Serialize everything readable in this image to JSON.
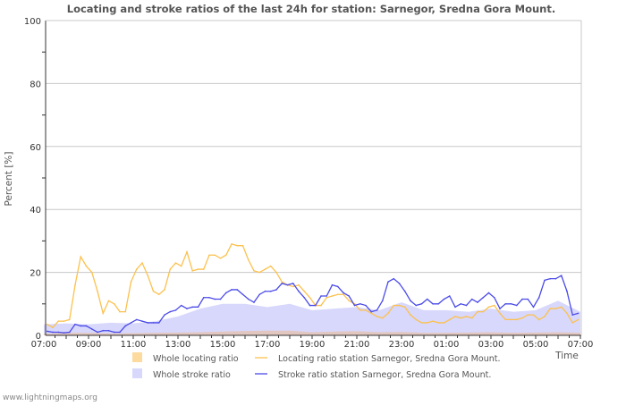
{
  "chart_data": {
    "type": "line",
    "title": "Locating and stroke ratios of the last 24h for station: Sarnegor, Sredna Gora Mount.",
    "xlabel": "Time",
    "ylabel": "Percent   [%]",
    "ylim": [
      0,
      100
    ],
    "xlim_hours_from_start": [
      0,
      24
    ],
    "y_ticks": [
      "0",
      "20",
      "40",
      "60",
      "80",
      "100"
    ],
    "y_tick_values": [
      0,
      20,
      40,
      60,
      80,
      100
    ],
    "x_ticks": [
      "07:00",
      "09:00",
      "11:00",
      "13:00",
      "15:00",
      "17:00",
      "19:00",
      "21:00",
      "23:00",
      "01:00",
      "03:00",
      "05:00",
      "07:00"
    ],
    "grid": true,
    "legend_placement": "bottom",
    "colors": {
      "whole_locating": "#fddb9e",
      "whole_stroke": "#d8d8fc",
      "locating_line": "#fcc14e",
      "stroke_line": "#4b4be8",
      "grid": "#c8c8c8"
    },
    "series": [
      {
        "name": "Whole locating ratio",
        "kind": "area",
        "x_start": 0,
        "x_step": 1,
        "values": [
          0.5,
          0.8,
          0.8,
          0.6,
          0.7,
          0.8,
          0.9,
          1,
          1.2,
          1.4,
          1.5,
          1.5,
          1,
          1.2,
          1.3,
          1,
          1.1,
          0.8,
          0.8,
          0.9,
          1,
          0.8,
          0.9,
          1,
          0.8
        ]
      },
      {
        "name": "Whole stroke ratio",
        "kind": "area",
        "x_start": 0,
        "x_step": 1,
        "values": [
          3.5,
          3.8,
          3.5,
          4,
          3.8,
          4.5,
          6,
          8.5,
          10,
          10,
          9,
          10,
          8,
          8.5,
          9,
          8,
          10.5,
          8,
          8,
          7.5,
          8.5,
          7.5,
          8,
          11,
          7.5
        ]
      },
      {
        "name": "Locating ratio station Sarnegor, Sredna Gora Mount.",
        "kind": "line",
        "x_start": 0.15,
        "x_step": 0.25,
        "values": [
          3.5,
          2.5,
          4.5,
          4.5,
          5,
          16,
          25,
          22,
          20,
          14,
          7,
          11,
          10,
          7.5,
          7.5,
          17,
          21,
          23,
          19,
          14,
          13,
          14.5,
          21,
          23,
          22,
          26.5,
          20.5,
          21,
          21,
          25.5,
          25.5,
          24.5,
          25.5,
          29,
          28.5,
          28.5,
          24,
          20.5,
          20,
          21,
          22,
          20,
          17,
          16,
          15.5,
          16,
          14,
          12,
          9.5,
          9.5,
          12,
          12.5,
          13,
          13,
          11,
          10,
          8,
          8,
          7,
          6,
          5.5,
          7,
          9.5,
          9.5,
          9,
          6.5,
          5,
          4,
          4,
          4.5,
          4,
          4,
          5,
          6,
          5.5,
          6,
          5.5,
          7.5,
          7.5,
          9,
          9.5,
          7,
          5,
          5,
          5,
          5.5,
          6.5,
          6.5,
          5,
          6,
          8.5,
          8.5,
          9,
          7,
          4,
          5
        ]
      },
      {
        "name": "Stroke ratio station Sarnegor, Sredna Gora Mount.",
        "kind": "line",
        "x_start": 0.15,
        "x_step": 0.25,
        "values": [
          1.3,
          1,
          1,
          0.8,
          1,
          3.5,
          3,
          3,
          2,
          1,
          1.5,
          1.5,
          1,
          1,
          3,
          4,
          5,
          4.5,
          4,
          4,
          4,
          6.5,
          7.5,
          8,
          9.5,
          8.5,
          9,
          9,
          12,
          12,
          11.5,
          11.5,
          13.5,
          14.5,
          14.5,
          13,
          11.5,
          10.5,
          13,
          14,
          14,
          14.5,
          16.5,
          16,
          16.5,
          14,
          12,
          9.5,
          9.5,
          12.5,
          12.5,
          16,
          15.5,
          13.5,
          12.5,
          9.5,
          10,
          9.5,
          7.5,
          8,
          11,
          17,
          18,
          16.5,
          14,
          11,
          9.5,
          10,
          11.5,
          10,
          10,
          11.5,
          12.5,
          9,
          10,
          9.5,
          11.5,
          10.5,
          12,
          13.5,
          12,
          8.5,
          10,
          10,
          9.5,
          11.5,
          11.5,
          9,
          12,
          17.5,
          18,
          18,
          19,
          14,
          6.5,
          7
        ]
      }
    ]
  },
  "footer": "www.lightningmaps.org"
}
